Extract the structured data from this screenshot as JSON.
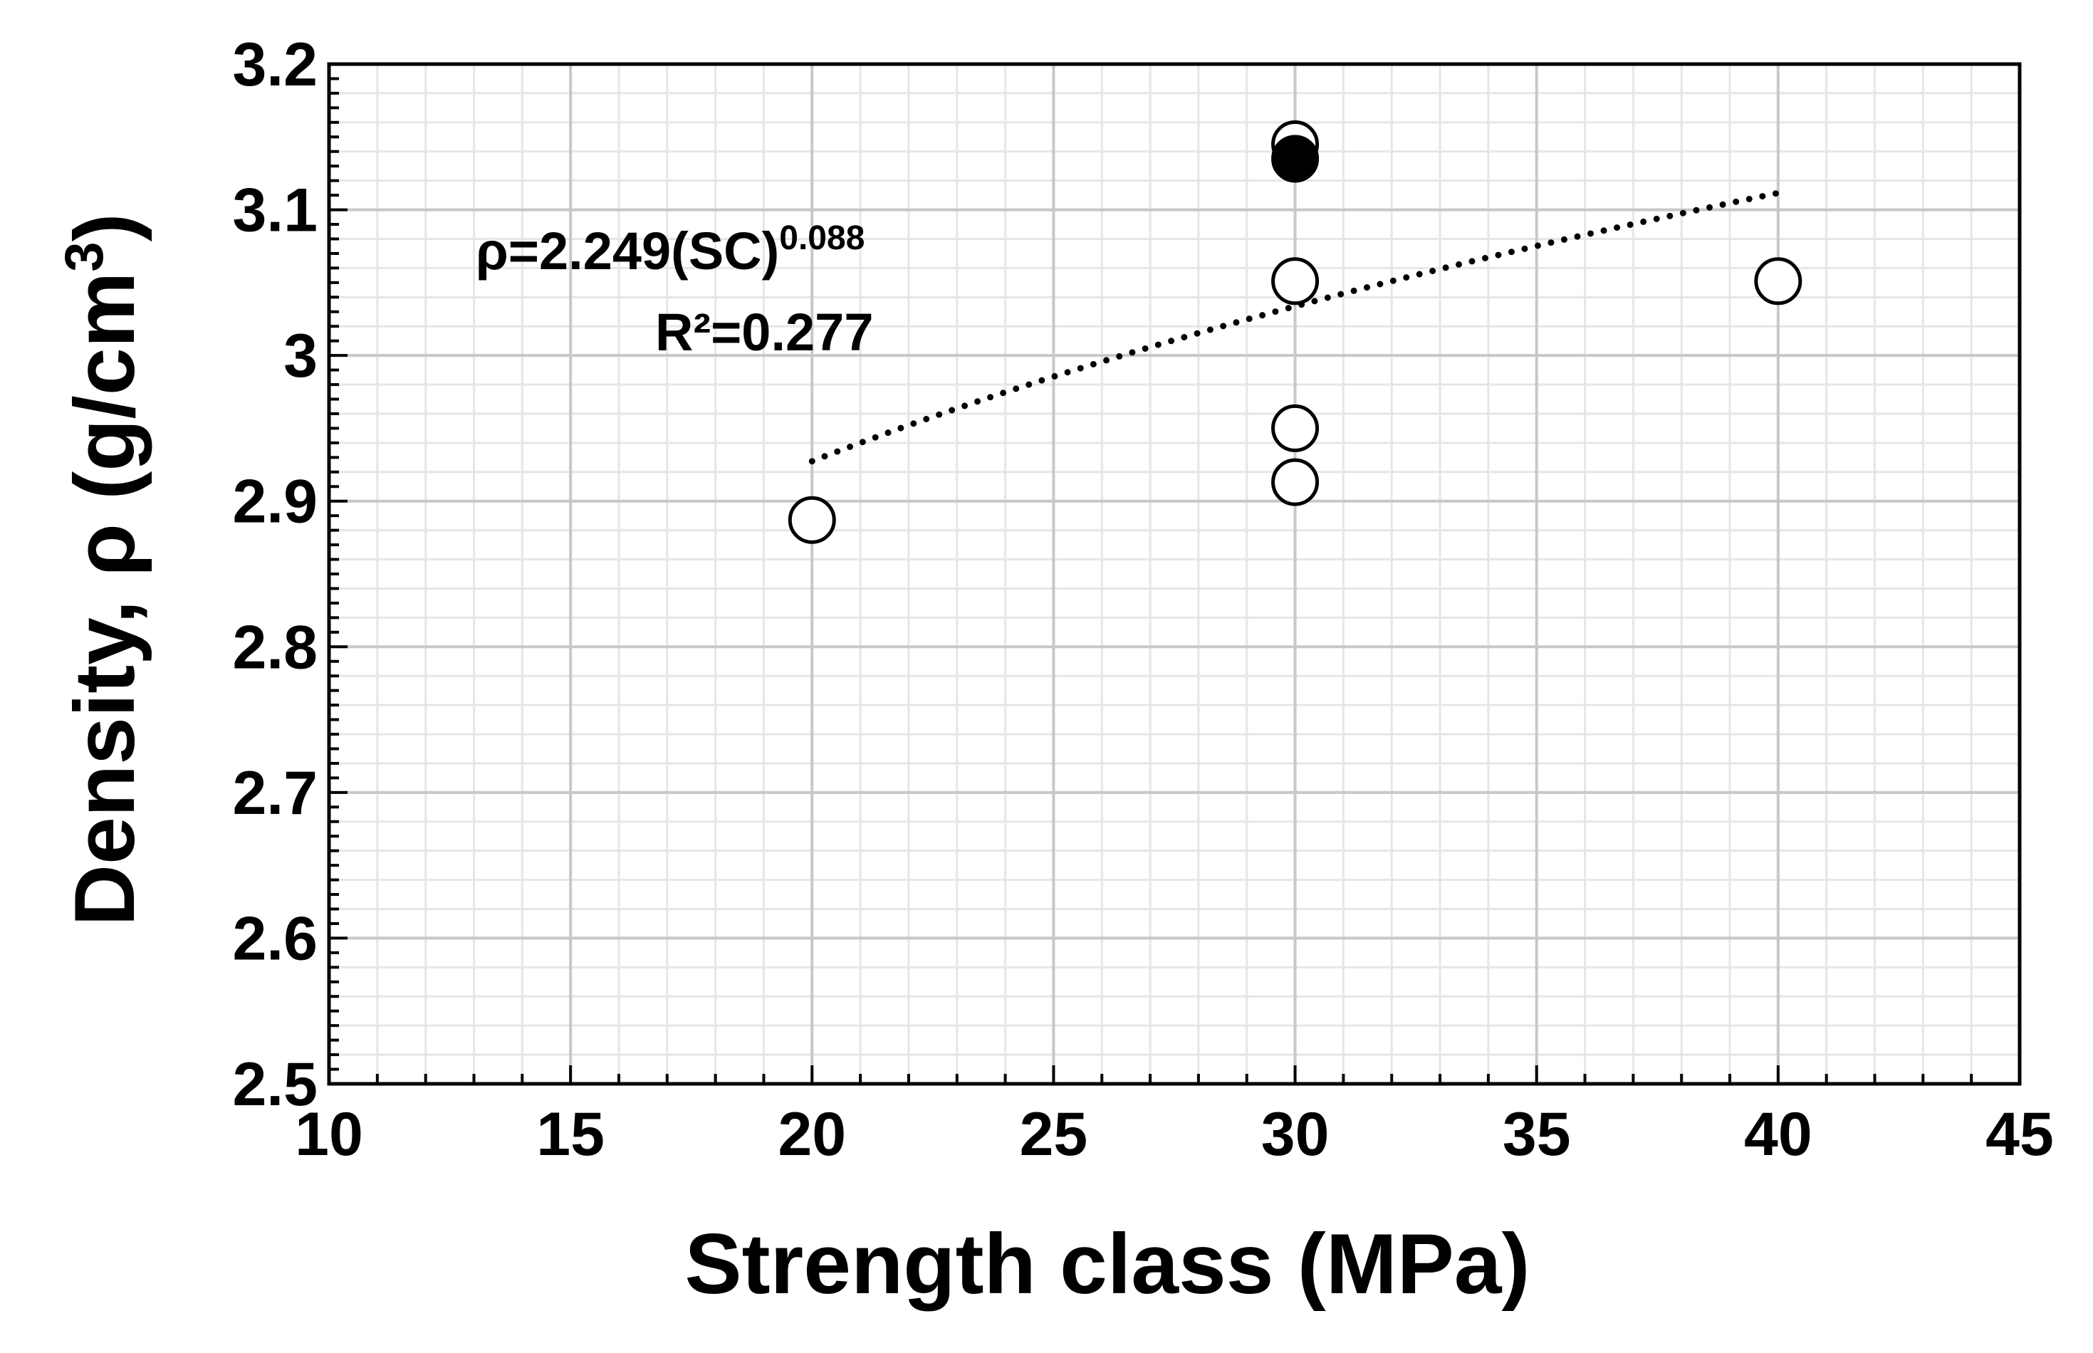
{
  "chart_data": {
    "type": "scatter",
    "x_ticks": [
      "10",
      "15",
      "20",
      "25",
      "30",
      "35",
      "40",
      "45"
    ],
    "y_ticks": [
      "2.5",
      "2.6",
      "2.7",
      "2.8",
      "2.9",
      "3",
      "3.1",
      "3.2"
    ],
    "xlim": [
      10,
      45
    ],
    "ylim": [
      2.5,
      3.2
    ],
    "xlabel": "Strength class (MPa)",
    "ylabel_main": "Density, ρ (g/cm",
    "ylabel_sup": "3",
    "ylabel_close": ")",
    "grid": true,
    "series": [
      {
        "marker": "open-circle",
        "points": [
          {
            "x": 20,
            "y": 2.887
          },
          {
            "x": 30,
            "y": 2.913
          },
          {
            "x": 30,
            "y": 2.95
          },
          {
            "x": 30,
            "y": 3.051
          },
          {
            "x": 30,
            "y": 3.145
          },
          {
            "x": 40,
            "y": 3.051
          }
        ]
      },
      {
        "marker": "filled-circle",
        "points": [
          {
            "x": 30,
            "y": 3.135
          }
        ]
      }
    ],
    "fit": {
      "style": "dotted",
      "coefficient": 2.249,
      "exponent": 0.088,
      "x_range": [
        20,
        40
      ],
      "equation_main": "ρ=2.249(SC)",
      "equation_exp": "0.088",
      "r2_label": "R²=0.277"
    }
  }
}
